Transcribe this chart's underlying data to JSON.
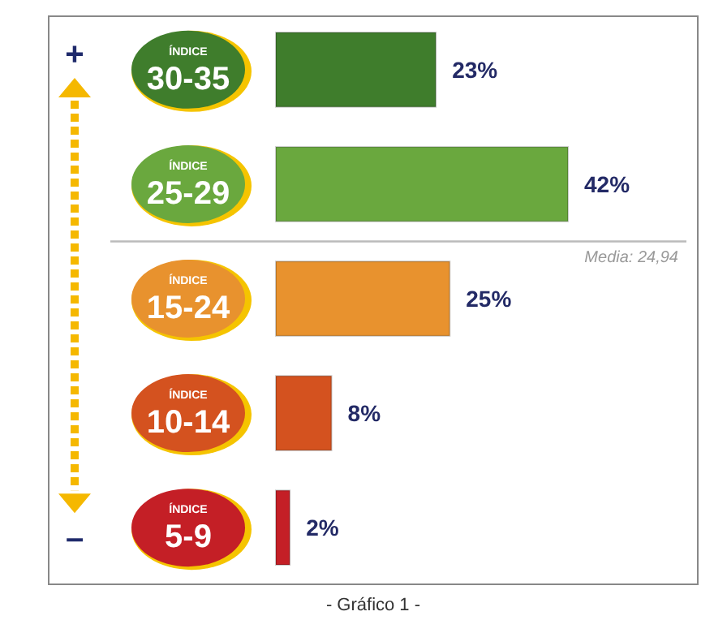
{
  "chart_data": {
    "type": "bar",
    "orientation": "horizontal",
    "categories": [
      "ÍNDICE\n30-35",
      "ÍNDICE\n25-29",
      "ÍNDICE\n15-24",
      "ÍNDICE\n10-14",
      "ÍNDICE\n5-9"
    ],
    "values": [
      23,
      42,
      25,
      8,
      2
    ],
    "colors": [
      "#3f7d2c",
      "#6aa83e",
      "#e8922e",
      "#d4521f",
      "#c41f26"
    ],
    "value_labels": [
      "23%",
      "42%",
      "25%",
      "8%",
      "2%"
    ],
    "annotations": [
      "+",
      "–",
      "- Gráfico 1 -",
      "Media: 24,94"
    ]
  }
}
